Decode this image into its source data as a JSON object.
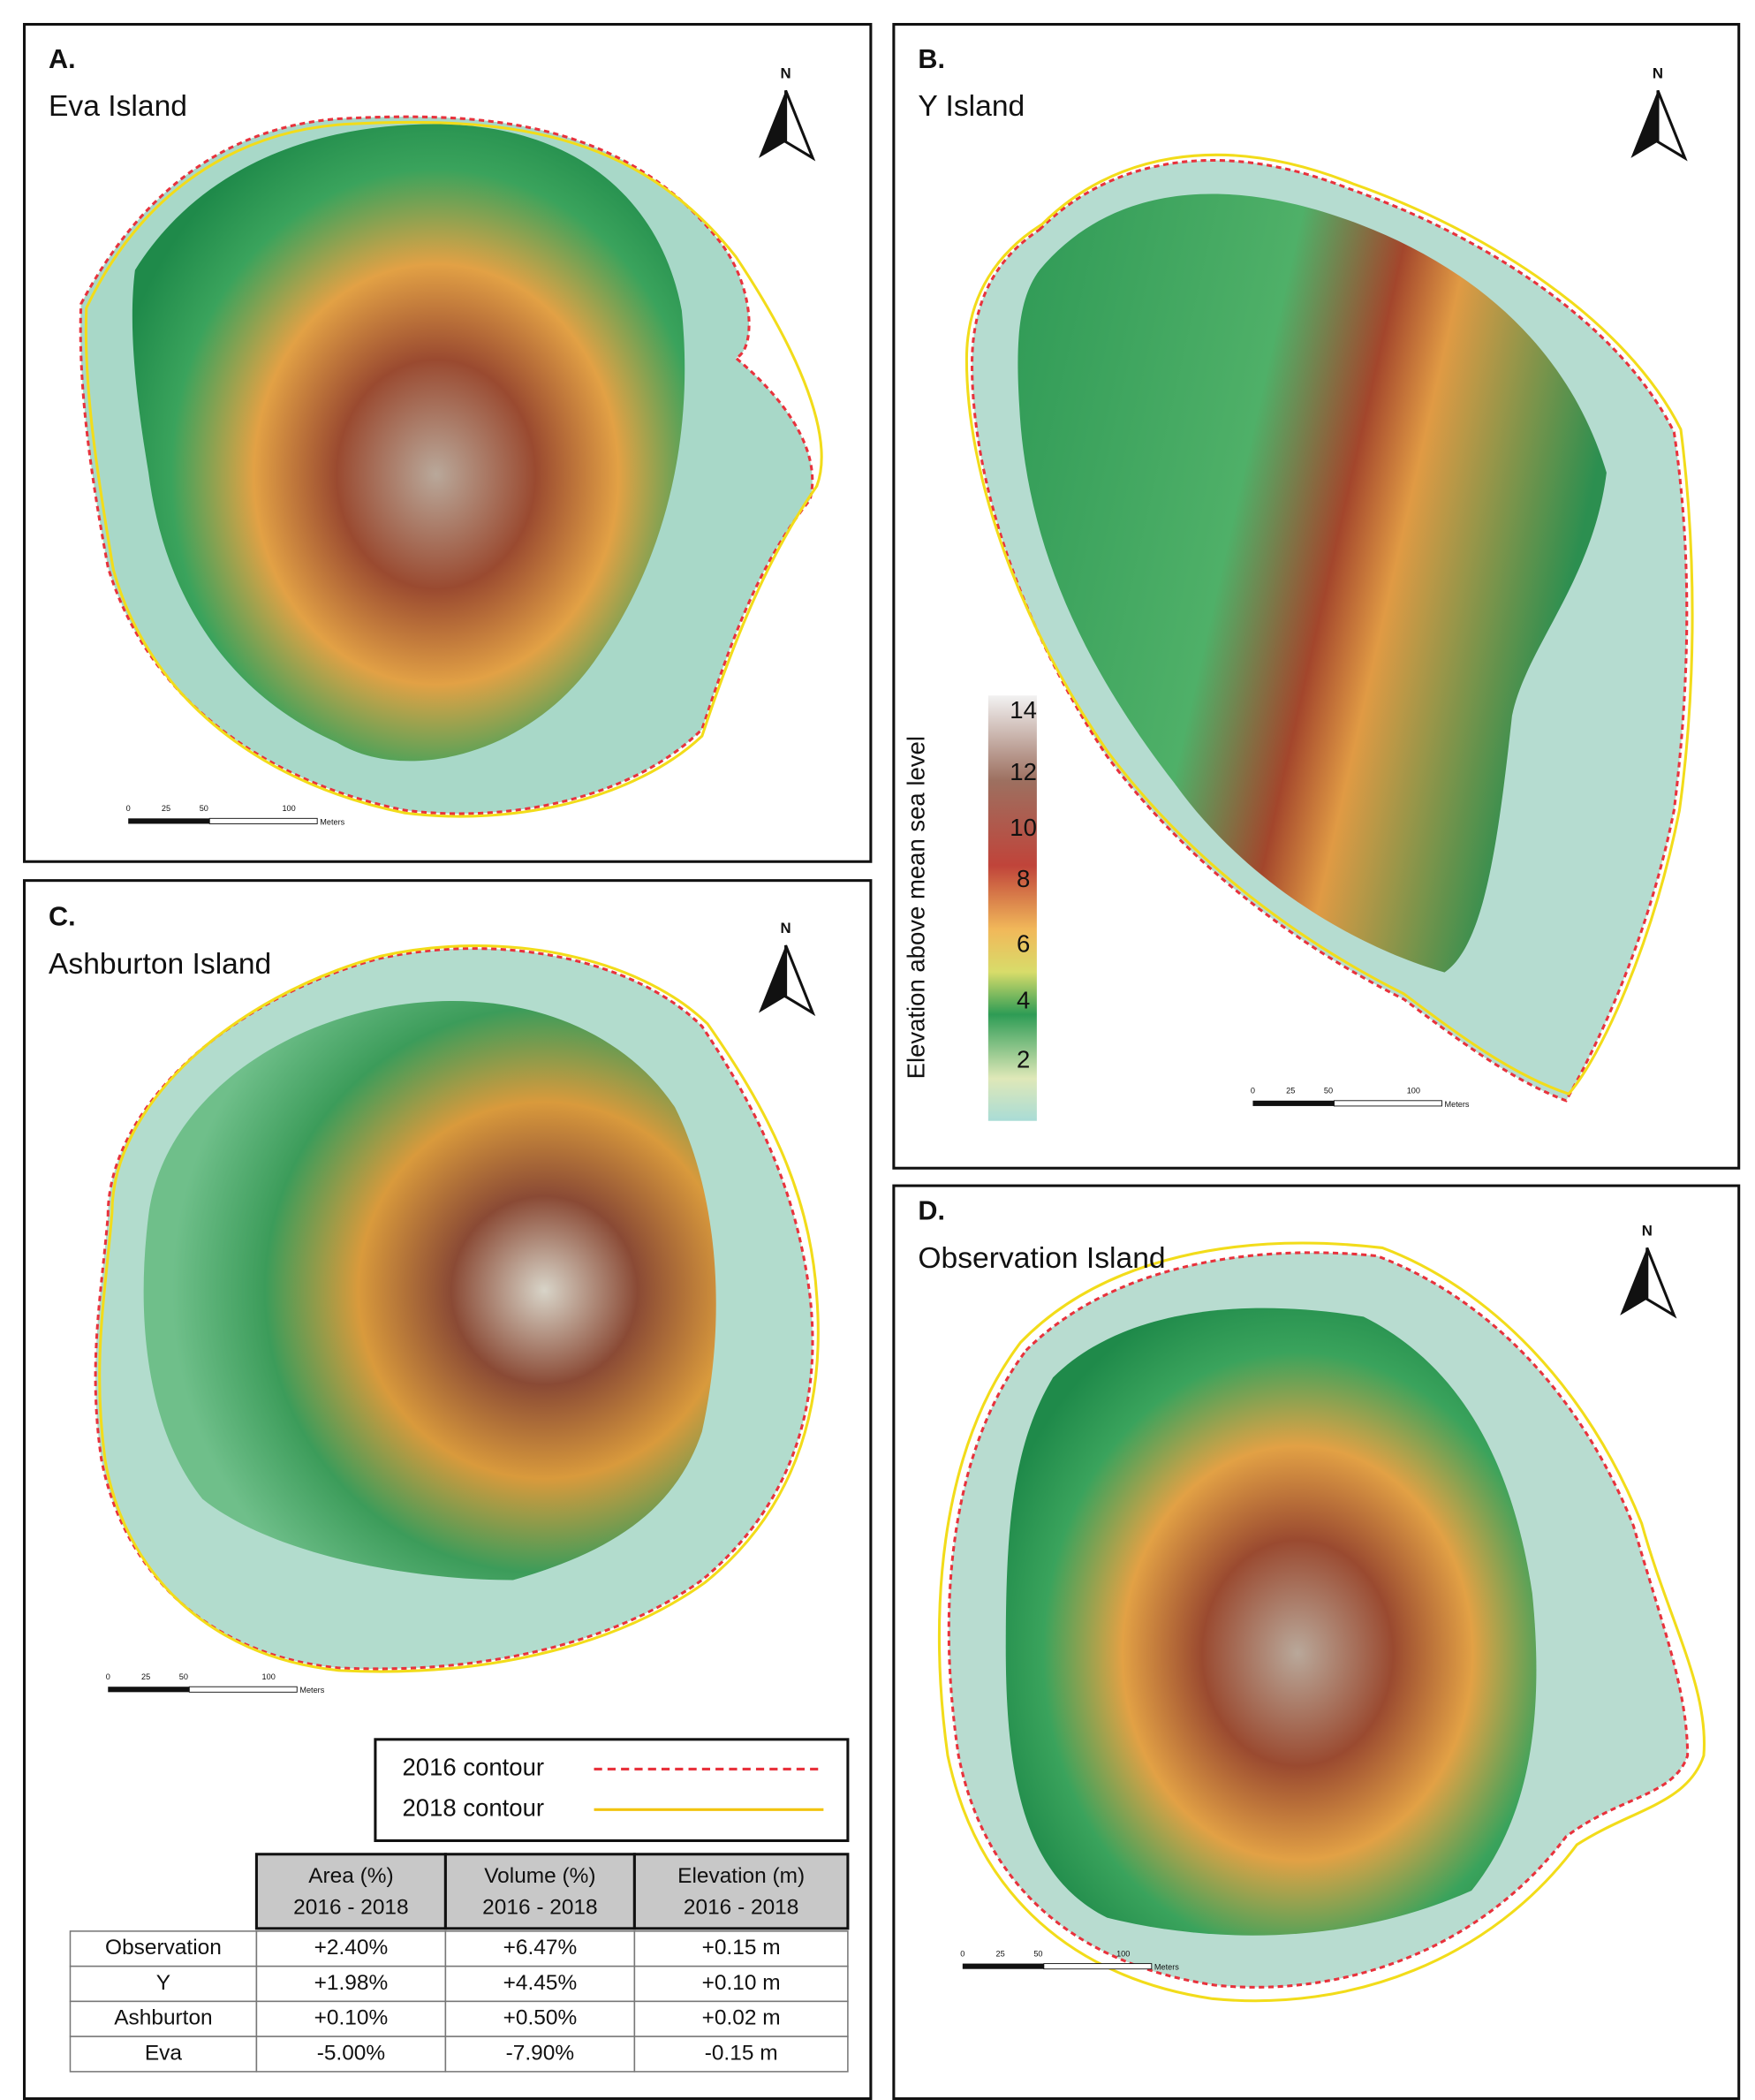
{
  "panels": [
    {
      "letter": "A.",
      "name": "Eva Island",
      "north": "N",
      "scale_ticks": [
        "0",
        "25",
        "50",
        "100"
      ],
      "scale_unit": "Meters"
    },
    {
      "letter": "B.",
      "name": "Y Island",
      "north": "N",
      "scale_ticks": [
        "0",
        "25",
        "50",
        "100"
      ],
      "scale_unit": "Meters"
    },
    {
      "letter": "C.",
      "name": "Ashburton Island",
      "north": "N",
      "scale_ticks": [
        "0",
        "25",
        "50",
        "100"
      ],
      "scale_unit": "Meters"
    },
    {
      "letter": "D.",
      "name": "Observation Island",
      "north": "N",
      "scale_ticks": [
        "0",
        "25",
        "50",
        "100"
      ],
      "scale_unit": "Meters"
    }
  ],
  "colorbar": {
    "title": "Elevation above mean sea level",
    "ticks": [
      "14",
      "12",
      "10",
      "8",
      "6",
      "4",
      "2"
    ]
  },
  "legend": [
    {
      "label": "2016 contour",
      "color": "#e8323c"
    },
    {
      "label": "2018 contour",
      "color": "#f2c40f"
    }
  ],
  "table": {
    "columns": [
      {
        "title": "Area (%)",
        "period": "2016 - 2018"
      },
      {
        "title": "Volume (%)",
        "period": "2016 - 2018"
      },
      {
        "title": "Elevation (m)",
        "period": "2016 - 2018"
      }
    ],
    "rows": [
      [
        "Observation",
        "+2.40%",
        "+6.47%",
        "+0.15 m"
      ],
      [
        "Y",
        "+1.98%",
        "+4.45%",
        "+0.10 m"
      ],
      [
        "Ashburton",
        "+0.10%",
        "+0.50%",
        "+0.02 m"
      ],
      [
        "Eva",
        "-5.00%",
        "-7.90%",
        "-0.15 m"
      ]
    ]
  }
}
